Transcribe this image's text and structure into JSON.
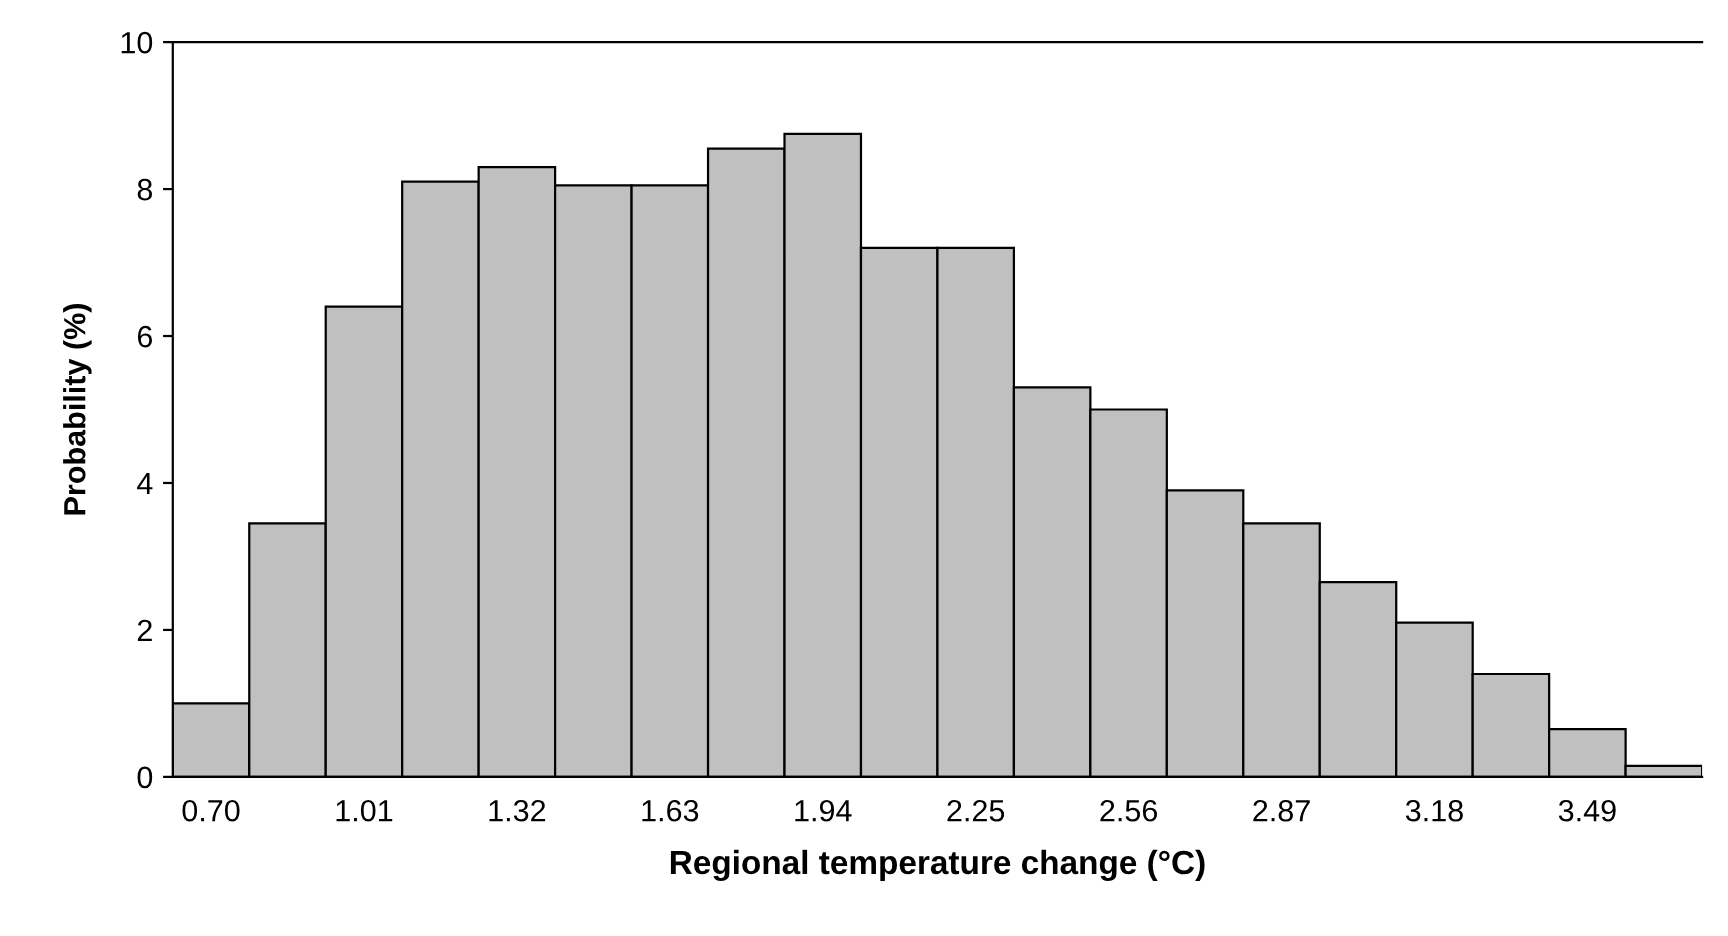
{
  "chart_data": {
    "type": "bar",
    "xlabel": "Regional temperature change (°C)",
    "ylabel": "Probability (%)",
    "categories": [
      "0.70",
      null,
      "1.01",
      null,
      "1.32",
      null,
      "1.63",
      null,
      "1.94",
      null,
      "2.25",
      null,
      "2.56",
      null,
      "2.87",
      null,
      "3.18",
      null,
      "3.49",
      null
    ],
    "values": [
      1.0,
      3.45,
      6.4,
      8.1,
      8.3,
      8.05,
      8.05,
      8.55,
      8.75,
      7.2,
      7.2,
      5.3,
      5.0,
      3.9,
      3.45,
      2.65,
      2.1,
      1.4,
      0.65,
      0.15
    ],
    "color": "#c0c0c0",
    "ylim": [
      0,
      10
    ],
    "yticks": [
      0,
      2,
      4,
      6,
      8,
      10
    ],
    "grid": false,
    "legend": false
  }
}
